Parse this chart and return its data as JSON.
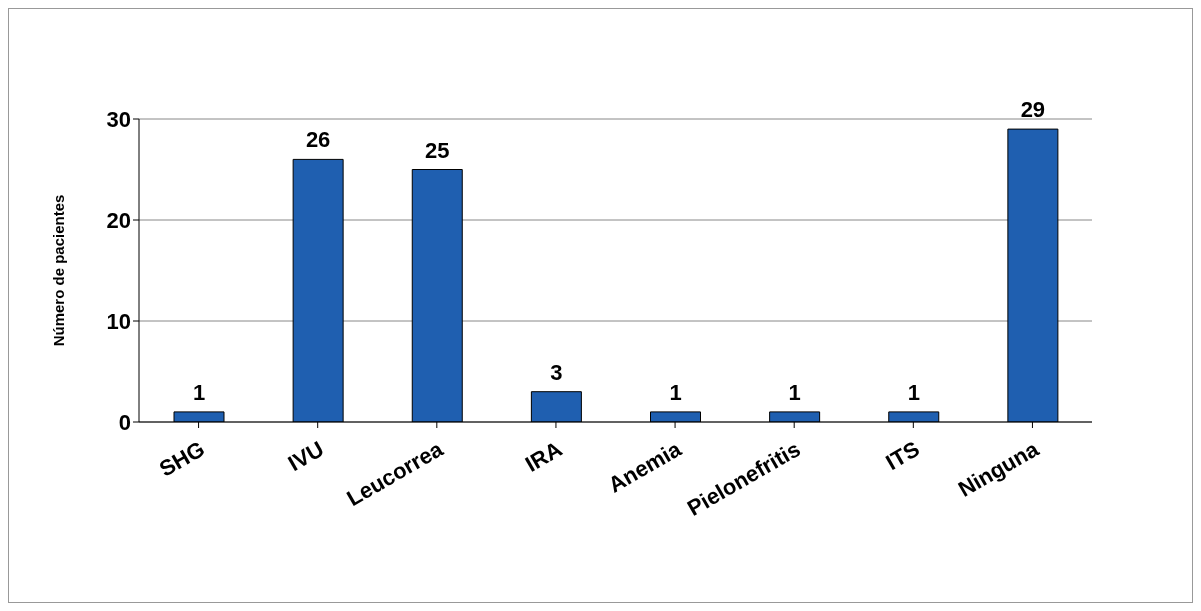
{
  "chart_data": {
    "type": "bar",
    "ylabel": "Número de pacientes",
    "categories": [
      "SHG",
      "IVU",
      "Leucorrea",
      "IRA",
      "Anemia",
      "Pielonefritis",
      "ITS",
      "Ninguna"
    ],
    "values": [
      1,
      26,
      25,
      3,
      1,
      1,
      1,
      29
    ],
    "color": "#1f5fb0",
    "ylim": [
      0,
      30
    ],
    "yticks": [
      0,
      10,
      20,
      30
    ],
    "grid": "y",
    "data_labels": true
  }
}
